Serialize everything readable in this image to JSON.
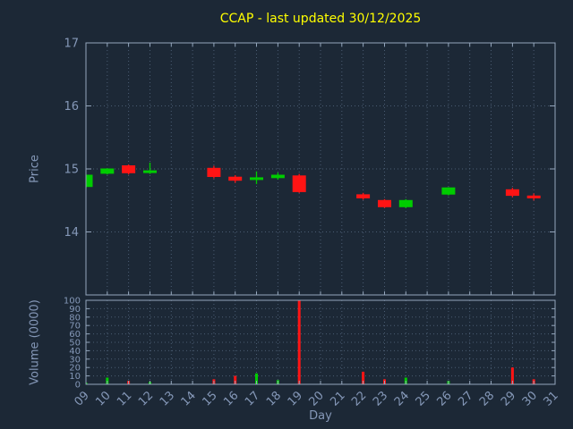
{
  "chart_data": {
    "type": "candlestick",
    "title": "CCAP - last updated 30/12/2025",
    "xlabel": "Day",
    "ylabel_price": "Price",
    "ylabel_volume": "Volume (0000)",
    "price_range": [
      13,
      17
    ],
    "price_ticks": [
      14,
      15,
      16,
      17
    ],
    "volume_range": [
      0,
      100
    ],
    "volume_ticks": [
      0,
      10,
      20,
      30,
      40,
      50,
      60,
      70,
      80,
      90,
      100
    ],
    "x_tick_labels": [
      "09",
      "10",
      "11",
      "12",
      "13",
      "14",
      "15",
      "16",
      "17",
      "18",
      "19",
      "20",
      "21",
      "22",
      "23",
      "24",
      "25",
      "26",
      "27",
      "28",
      "29",
      "30",
      "31"
    ],
    "candles": [
      {
        "day": "09",
        "open": 14.72,
        "high": 14.91,
        "low": 14.7,
        "close": 14.9,
        "volume": 2
      },
      {
        "day": "10",
        "open": 14.93,
        "high": 15.01,
        "low": 14.91,
        "close": 15.0,
        "volume": 8
      },
      {
        "day": "11",
        "open": 15.05,
        "high": 15.07,
        "low": 14.91,
        "close": 14.94,
        "volume": 4
      },
      {
        "day": "12",
        "open": 14.96,
        "high": 15.1,
        "low": 14.92,
        "close": 14.97,
        "volume": 3
      },
      {
        "day": "15",
        "open": 15.01,
        "high": 15.05,
        "low": 14.85,
        "close": 14.88,
        "volume": 6
      },
      {
        "day": "16",
        "open": 14.87,
        "high": 14.9,
        "low": 14.78,
        "close": 14.82,
        "volume": 10
      },
      {
        "day": "17",
        "open": 14.84,
        "high": 14.96,
        "low": 14.76,
        "close": 14.86,
        "volume": 13
      },
      {
        "day": "18",
        "open": 14.86,
        "high": 14.94,
        "low": 14.83,
        "close": 14.9,
        "volume": 5
      },
      {
        "day": "19",
        "open": 14.89,
        "high": 14.92,
        "low": 14.62,
        "close": 14.64,
        "volume": 100
      },
      {
        "day": "22",
        "open": 14.59,
        "high": 14.62,
        "low": 14.51,
        "close": 14.54,
        "volume": 15
      },
      {
        "day": "23",
        "open": 14.5,
        "high": 14.52,
        "low": 14.38,
        "close": 14.4,
        "volume": 6
      },
      {
        "day": "24",
        "open": 14.4,
        "high": 14.52,
        "low": 14.38,
        "close": 14.5,
        "volume": 8
      },
      {
        "day": "26",
        "open": 14.6,
        "high": 14.71,
        "low": 14.58,
        "close": 14.7,
        "volume": 4
      },
      {
        "day": "29",
        "open": 14.67,
        "high": 14.7,
        "low": 14.55,
        "close": 14.58,
        "volume": 20
      },
      {
        "day": "30",
        "open": 14.57,
        "high": 14.61,
        "low": 14.5,
        "close": 14.54,
        "volume": 6
      }
    ],
    "colors": {
      "up": "#00cc00",
      "down": "#ff1414",
      "background": "#1c2836",
      "grid": "#4a5c72",
      "border": "#94a6bc",
      "axis_text": "#8598b8",
      "title": "#ffff00"
    }
  }
}
